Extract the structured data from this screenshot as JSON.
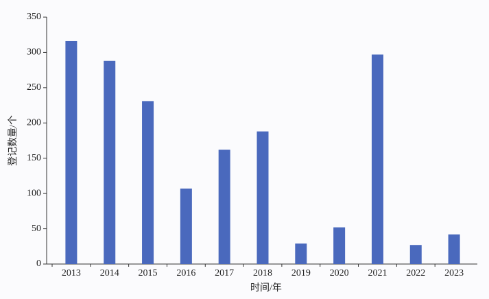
{
  "chart_data": {
    "type": "bar",
    "xlabel": "时间/年",
    "ylabel": "登记数量/个",
    "categories": [
      "2013",
      "2014",
      "2015",
      "2016",
      "2017",
      "2018",
      "2019",
      "2020",
      "2021",
      "2022",
      "2023"
    ],
    "values": [
      316,
      288,
      231,
      107,
      162,
      188,
      29,
      52,
      297,
      27,
      42
    ],
    "color": "#4a69bd",
    "ylim": [
      0,
      350
    ],
    "yticks": [
      0,
      50,
      100,
      150,
      200,
      250,
      300,
      350
    ],
    "grid": false
  }
}
